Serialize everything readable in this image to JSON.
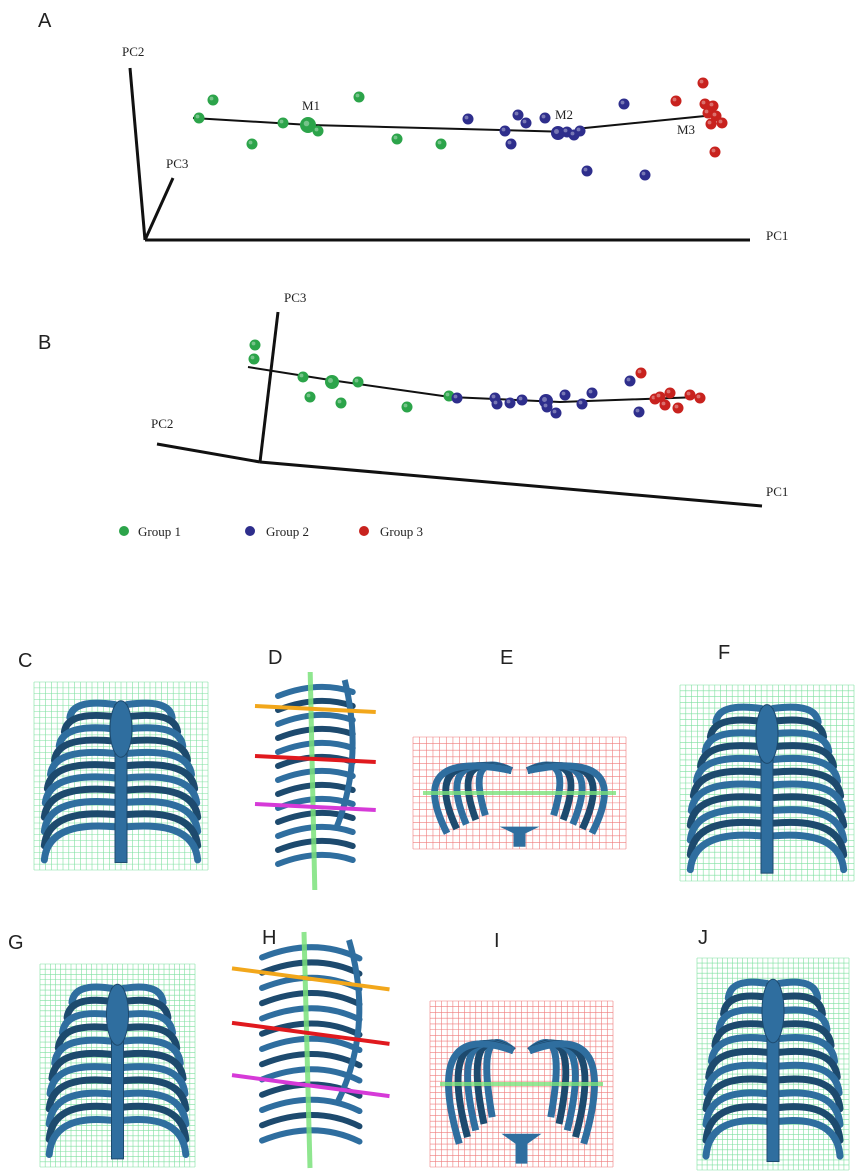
{
  "panel_a": {
    "label": "A",
    "axes": [
      "PC2",
      "PC3",
      "PC1"
    ],
    "centroids": [
      "M1",
      "M2",
      "M3"
    ]
  },
  "panel_b": {
    "label": "B",
    "axes": [
      "PC3",
      "PC2",
      "PC1"
    ]
  },
  "legend": [
    "Group 1",
    "Group 2",
    "Group 3"
  ],
  "image_panels": [
    "C",
    "D",
    "E",
    "F",
    "G",
    "H",
    "I",
    "J"
  ]
}
